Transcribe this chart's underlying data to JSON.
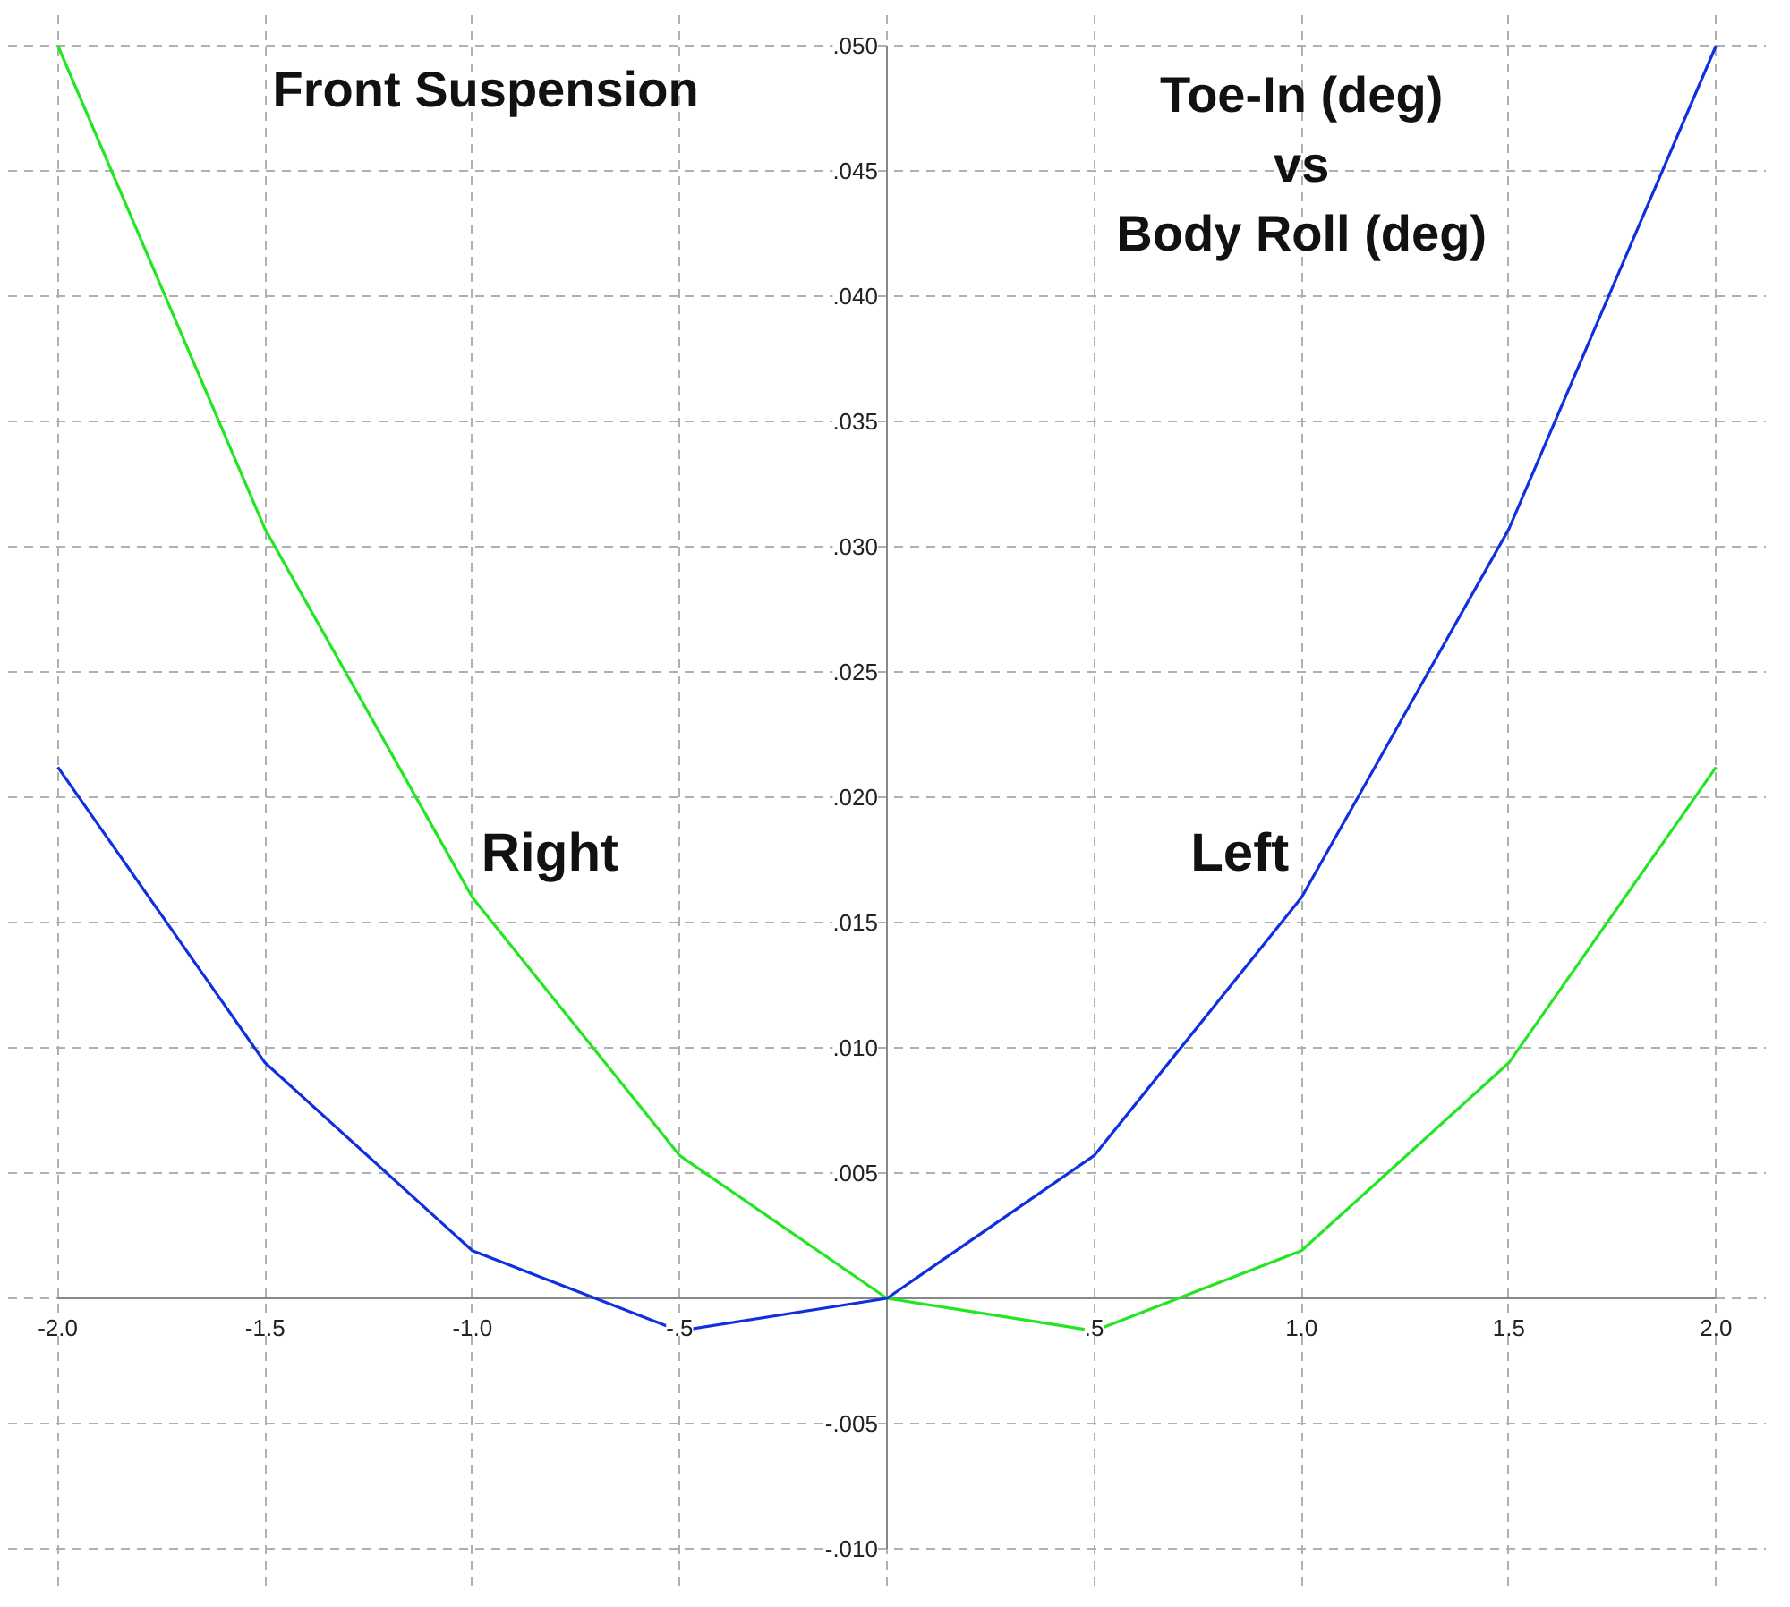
{
  "chart_data": {
    "type": "line",
    "title": "Front Suspension",
    "subtitle": "Toe-In (deg)\nvs\nBody Roll (deg)",
    "x": [
      -2.0,
      -1.5,
      -1.0,
      -0.5,
      0,
      0.5,
      1.0,
      1.5,
      2.0
    ],
    "series": [
      {
        "name": "Right",
        "color": "#22e622",
        "values": [
          0.05,
          0.0307,
          0.016,
          0.0057,
          0,
          -0.0013,
          0.0019,
          0.0094,
          0.0212
        ]
      },
      {
        "name": "Left",
        "color": "#1030e0",
        "values": [
          0.0212,
          0.0094,
          0.0019,
          -0.0013,
          0,
          0.0057,
          0.016,
          0.0307,
          0.05
        ]
      }
    ],
    "xlim": [
      -2.0,
      2.0
    ],
    "ylim": [
      -0.01,
      0.05
    ],
    "xticks": [
      {
        "value": -2.0,
        "label": "-2.0"
      },
      {
        "value": -1.5,
        "label": "-1.5"
      },
      {
        "value": -1.0,
        "label": "-1.0"
      },
      {
        "value": -0.5,
        "label": "-.5"
      },
      {
        "value": 0,
        "label": null
      },
      {
        "value": 0.5,
        "label": ".5"
      },
      {
        "value": 1.0,
        "label": "1.0"
      },
      {
        "value": 1.5,
        "label": "1.5"
      },
      {
        "value": 2.0,
        "label": "2.0"
      }
    ],
    "yticks": [
      {
        "value": -0.01,
        "label": "-.010"
      },
      {
        "value": -0.005,
        "label": "-.005"
      },
      {
        "value": 0,
        "label": null
      },
      {
        "value": 0.005,
        "label": ".005"
      },
      {
        "value": 0.01,
        "label": ".010"
      },
      {
        "value": 0.015,
        "label": ".015"
      },
      {
        "value": 0.02,
        "label": ".020"
      },
      {
        "value": 0.025,
        "label": ".025"
      },
      {
        "value": 0.03,
        "label": ".030"
      },
      {
        "value": 0.035,
        "label": ".035"
      },
      {
        "value": 0.04,
        "label": ".040"
      },
      {
        "value": 0.045,
        "label": ".045"
      },
      {
        "value": 0.05,
        "label": ".050"
      }
    ],
    "grid": true,
    "marker": "none",
    "line_style": "solid"
  }
}
